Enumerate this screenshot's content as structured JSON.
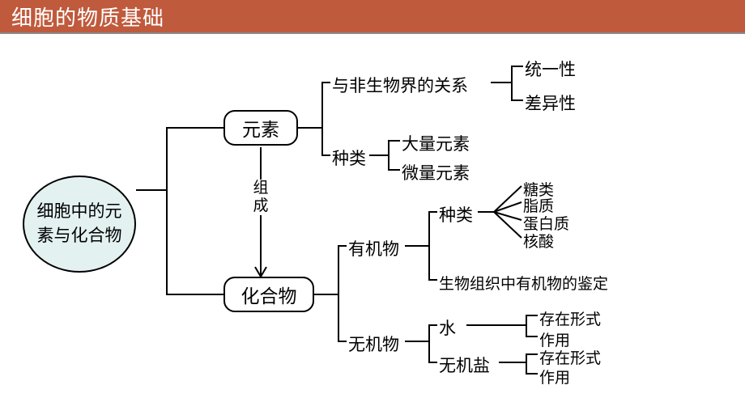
{
  "header": {
    "title": "细胞的物质基础",
    "bg": "#c05a3c",
    "fg": "#ffffff"
  },
  "root": {
    "line1": "细胞中的元",
    "line2": "素与化合物",
    "bg": "#e3f1f1"
  },
  "box_element": "元素",
  "box_compound": "化合物",
  "arrow_label": "组\n成",
  "el_rel": "与非生物界的关系",
  "el_rel_c1": "统一性",
  "el_rel_c2": "差异性",
  "el_kind": "种类",
  "el_kind_c1": "大量元素",
  "el_kind_c2": "微量元素",
  "organic": "有机物",
  "organic_kind": "种类",
  "organic_k1": "糖类",
  "organic_k2": "脂质",
  "organic_k3": "蛋白质",
  "organic_k4": "核酸",
  "organic_id": "生物组织中有机物的鉴定",
  "inorganic": "无机物",
  "water": "水",
  "salt": "无机盐",
  "form": "存在形式",
  "role": "作用",
  "colors": {
    "line": "#000000"
  }
}
